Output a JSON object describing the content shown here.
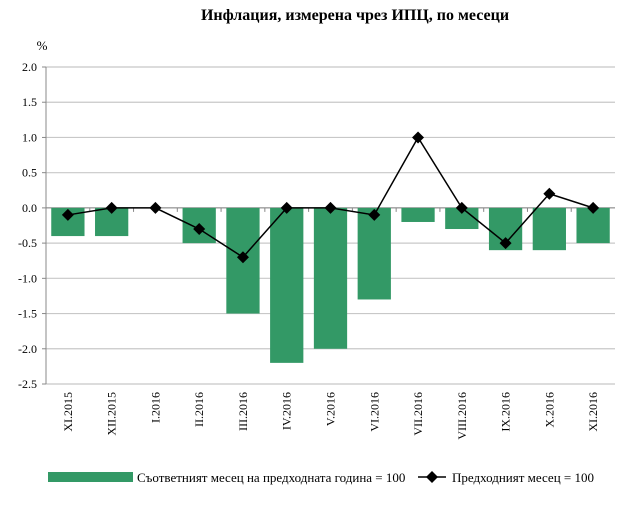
{
  "chart_data": {
    "type": "bar",
    "title": "Инфлация, измерена чрез ИПЦ, по месеци",
    "ylabel": "%",
    "xlabel": "",
    "ylim": [
      -2.5,
      2.0
    ],
    "yticks": [
      "2.0",
      "1.5",
      "1.0",
      "0.5",
      "0.0",
      "-0.5",
      "-1.0",
      "-1.5",
      "-2.0",
      "-2.5"
    ],
    "ytick_values": [
      2.0,
      1.5,
      1.0,
      0.5,
      0.0,
      -0.5,
      -1.0,
      -1.5,
      -2.0,
      -2.5
    ],
    "grid": true,
    "legend_position": "bottom",
    "categories": [
      "XI.2015",
      "XII.2015",
      "I.2016",
      "II.2016",
      "III.2016",
      "IV.2016",
      "V.2016",
      "VI.2016",
      "VII.2016",
      "VIII.2016",
      "IX.2016",
      "X.2016",
      "XI.2016"
    ],
    "series": [
      {
        "name": "Съответният месец на предходната година = 100",
        "type": "bar",
        "color": "#339966",
        "values": [
          -0.4,
          -0.4,
          0.0,
          -0.5,
          -1.5,
          -2.2,
          -2.0,
          -1.3,
          -0.2,
          -0.3,
          -0.6,
          -0.6,
          -0.5
        ]
      },
      {
        "name": "Предходният месец = 100",
        "type": "line",
        "color": "#000000",
        "marker": "diamond",
        "values": [
          -0.1,
          0.0,
          0.0,
          -0.3,
          -0.7,
          0.0,
          0.0,
          -0.1,
          1.0,
          0.0,
          -0.5,
          0.2,
          0.0
        ]
      }
    ]
  }
}
